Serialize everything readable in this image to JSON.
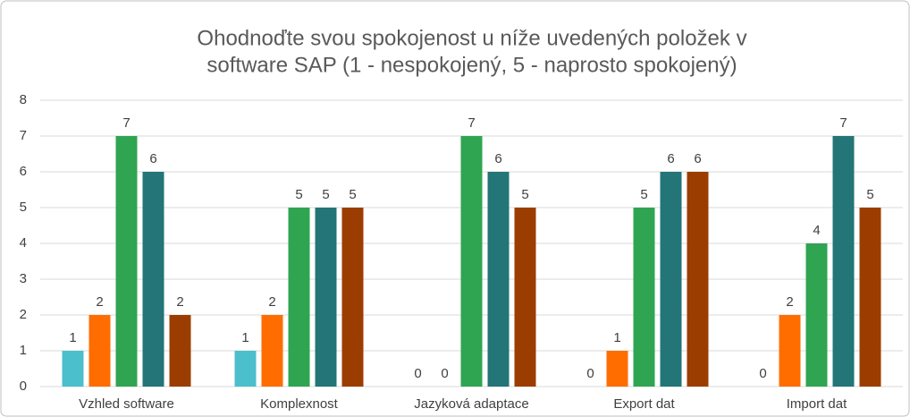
{
  "chart_data": {
    "type": "bar",
    "title": [
      "Ohodnoďte svou spokojenost u níže uvedených položek v",
      "software SAP (1 - nespokojený, 5 - naprosto spokojený)"
    ],
    "categories": [
      "Vzhled software",
      "Komplexnost",
      "Jazyková adaptace",
      "Export dat",
      "Import dat"
    ],
    "series": [
      {
        "color": "#4bbfcb",
        "values": [
          1,
          1,
          0,
          0,
          0
        ]
      },
      {
        "color": "#ff6d00",
        "values": [
          2,
          2,
          0,
          1,
          2
        ]
      },
      {
        "color": "#2fa551",
        "values": [
          7,
          5,
          7,
          5,
          4
        ]
      },
      {
        "color": "#237577",
        "values": [
          6,
          5,
          6,
          6,
          7
        ]
      },
      {
        "color": "#9b3d00",
        "values": [
          2,
          5,
          5,
          6,
          5
        ]
      }
    ],
    "ylim": [
      0,
      8
    ],
    "yticks": [
      0,
      1,
      2,
      3,
      4,
      5,
      6,
      7,
      8
    ],
    "grid": true
  }
}
